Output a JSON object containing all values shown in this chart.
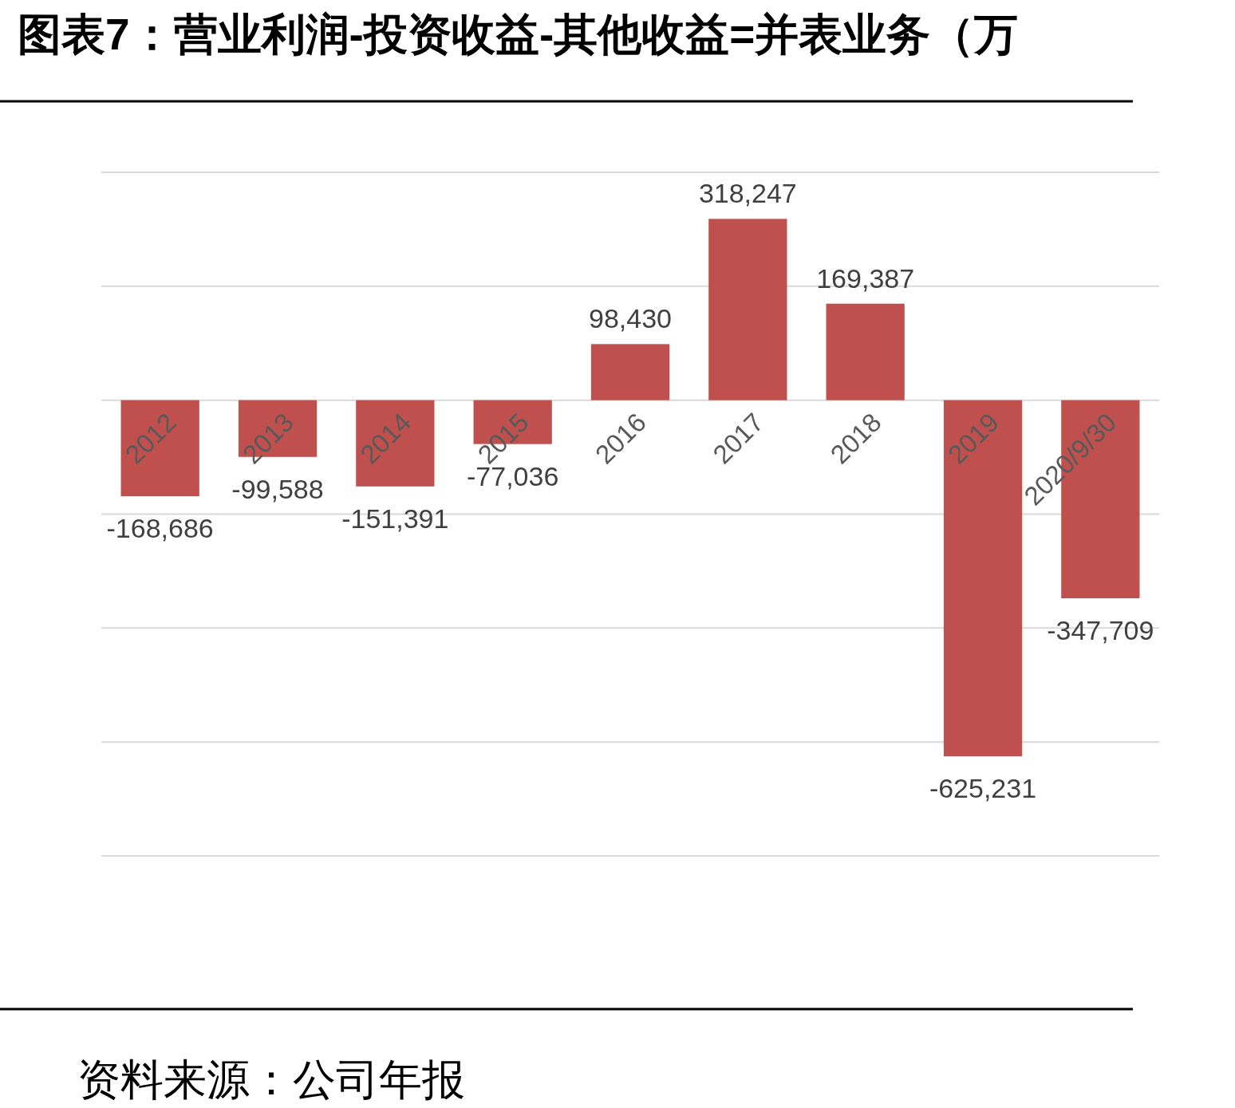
{
  "chart_data": {
    "type": "bar",
    "title": "图表7：营业利润-投资收益-其他收益=并表业务（万",
    "categories": [
      "2012",
      "2013",
      "2014",
      "2015",
      "2016",
      "2017",
      "2018",
      "2019",
      "2020/9/30"
    ],
    "values": [
      -168686,
      -99588,
      -151391,
      -77036,
      98430,
      318247,
      169387,
      -625231,
      -347709
    ],
    "color": "#c0504d",
    "value_labels": [
      "-168,686",
      "-99,588",
      "-151,391",
      "-77,036",
      "98,430",
      "318,247",
      "169,387",
      "-625,231",
      "-347,709"
    ],
    "grid": "y",
    "annotations": [
      "资料来源：公司年报"
    ]
  }
}
